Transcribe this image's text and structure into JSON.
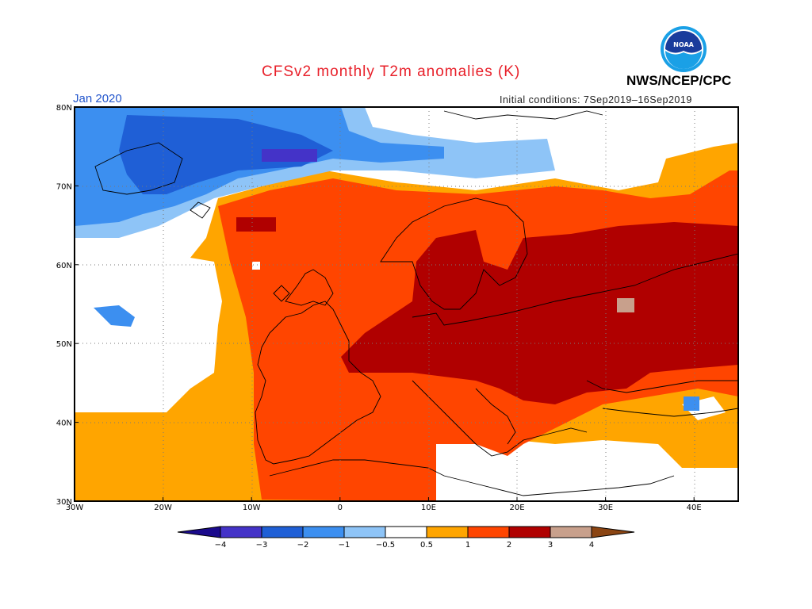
{
  "title": "CFSv2 monthly T2m anomalies (K)",
  "agency": "NWS/NCEP/CPC",
  "logo": {
    "text": "NOAA",
    "icon": "noaa-logo"
  },
  "period": "Jan 2020",
  "initial_conditions": "Initial conditions: 7Sep2019–16Sep2019",
  "map": {
    "lon_range": [
      -30,
      45
    ],
    "lat_range": [
      30,
      80
    ],
    "lon_ticks": [
      "30W",
      "20W",
      "10W",
      "0",
      "10E",
      "20E",
      "30E",
      "40E"
    ],
    "lat_ticks": [
      "30N",
      "40N",
      "50N",
      "60N",
      "70N",
      "80N"
    ]
  },
  "colorbar": {
    "labels": [
      "-4",
      "-3",
      "-2",
      "-1",
      "-0.5",
      "0.5",
      "1",
      "2",
      "3",
      "4"
    ],
    "colors": [
      "#1a0a8c",
      "#4433c8",
      "#1f5fd6",
      "#3c8ff0",
      "#8ec4f7",
      "#ffffff",
      "#ffa500",
      "#ff4500",
      "#b00000",
      "#c8a08c",
      "#8b4513"
    ]
  }
}
